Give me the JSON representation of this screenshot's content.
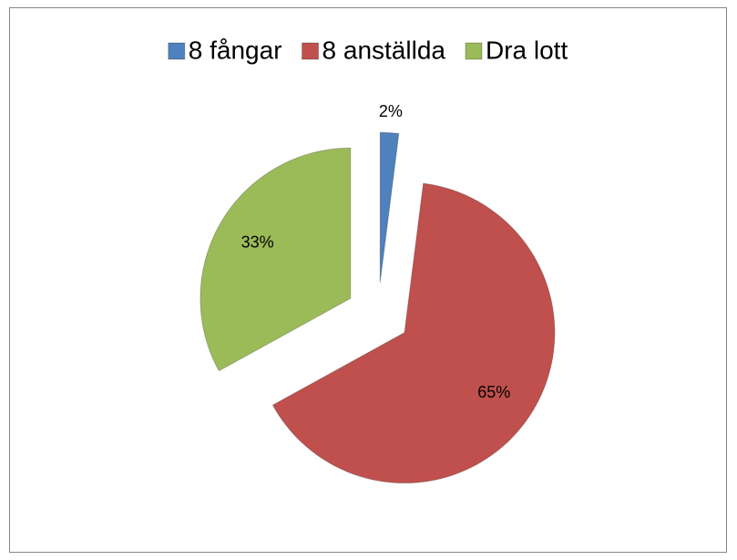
{
  "chart_data": {
    "type": "pie",
    "categories": [
      "8 fångar",
      "8 anställda",
      "Dra lott"
    ],
    "values": [
      2,
      65,
      33
    ],
    "value_labels": [
      "2%",
      "65%",
      "33%"
    ],
    "colors": [
      "#4f81bd",
      "#c0504d",
      "#9bbb59"
    ],
    "legend": "top"
  }
}
